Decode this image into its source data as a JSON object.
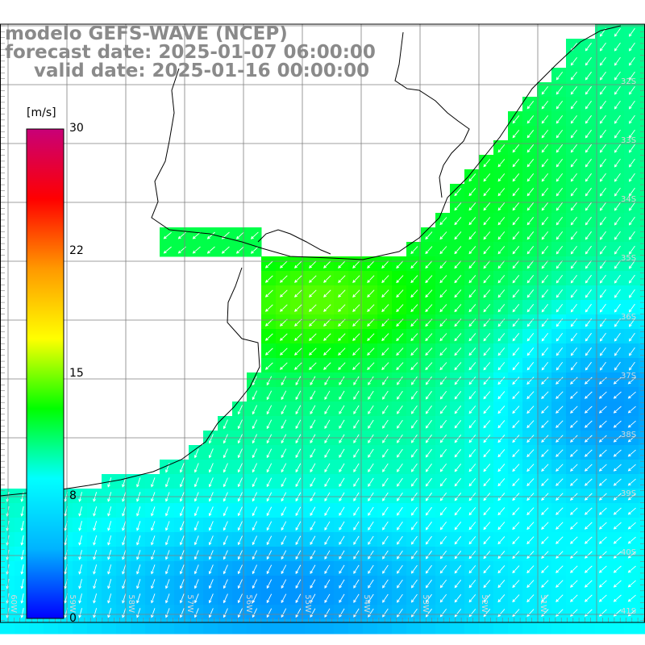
{
  "header": {
    "title": "modelo GEFS-WAVE (NCEP)",
    "forecast": "forecast date: 2025-01-07 06:00:00",
    "valid": "valid date: 2025-01-16 00:00:00"
  },
  "colorbar": {
    "unit": "[m/s]",
    "ticks": [
      "30",
      "22",
      "15",
      "8",
      "0"
    ],
    "stops": [
      "#0000ff",
      "#00b4ff",
      "#00ffff",
      "#00ff00",
      "#ffff00",
      "#ff9900",
      "#ff0000",
      "#c80078"
    ]
  },
  "lat_labels": [
    "32S",
    "33S",
    "34S",
    "35S",
    "36S",
    "37S",
    "38S",
    "39S",
    "40S",
    "41S"
  ],
  "lon_labels": [
    "60W",
    "59W",
    "58W",
    "57W",
    "56W",
    "55W",
    "54W",
    "53W",
    "52W",
    "51W"
  ],
  "colors": {
    "land": "#ffffff",
    "grid": "#7f7f7f",
    "coast": "#000000",
    "arrow": "#ffffff"
  }
}
